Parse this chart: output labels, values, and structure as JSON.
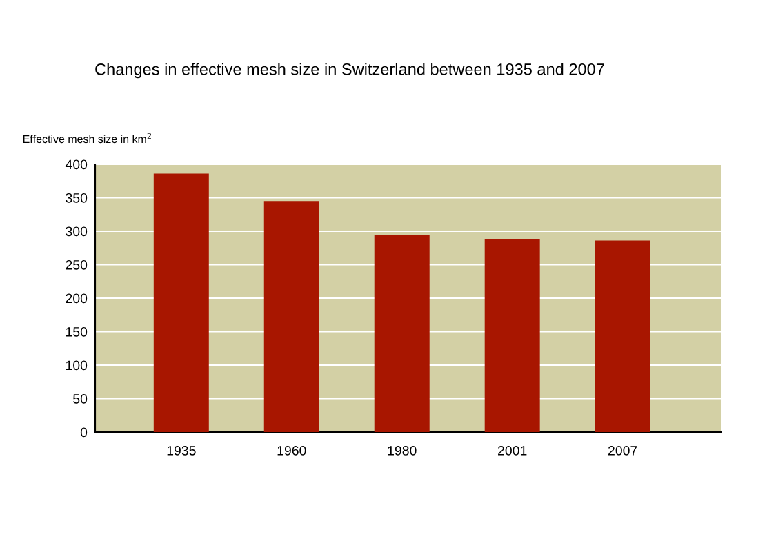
{
  "chart_data": {
    "type": "bar",
    "title": "Changes in effective mesh size in Switzerland between 1935 and 2007",
    "ylabel": "Effective mesh size in km$^{2}$",
    "categories": [
      "1935",
      "1960",
      "1980",
      "2001",
      "2007"
    ],
    "values": [
      386,
      345,
      294,
      288,
      286
    ],
    "color": "#a81600",
    "ylim": [
      0,
      400
    ],
    "yticks": [
      0,
      50,
      100,
      150,
      200,
      250,
      300,
      350,
      400
    ],
    "grid": "y",
    "legend": false
  }
}
